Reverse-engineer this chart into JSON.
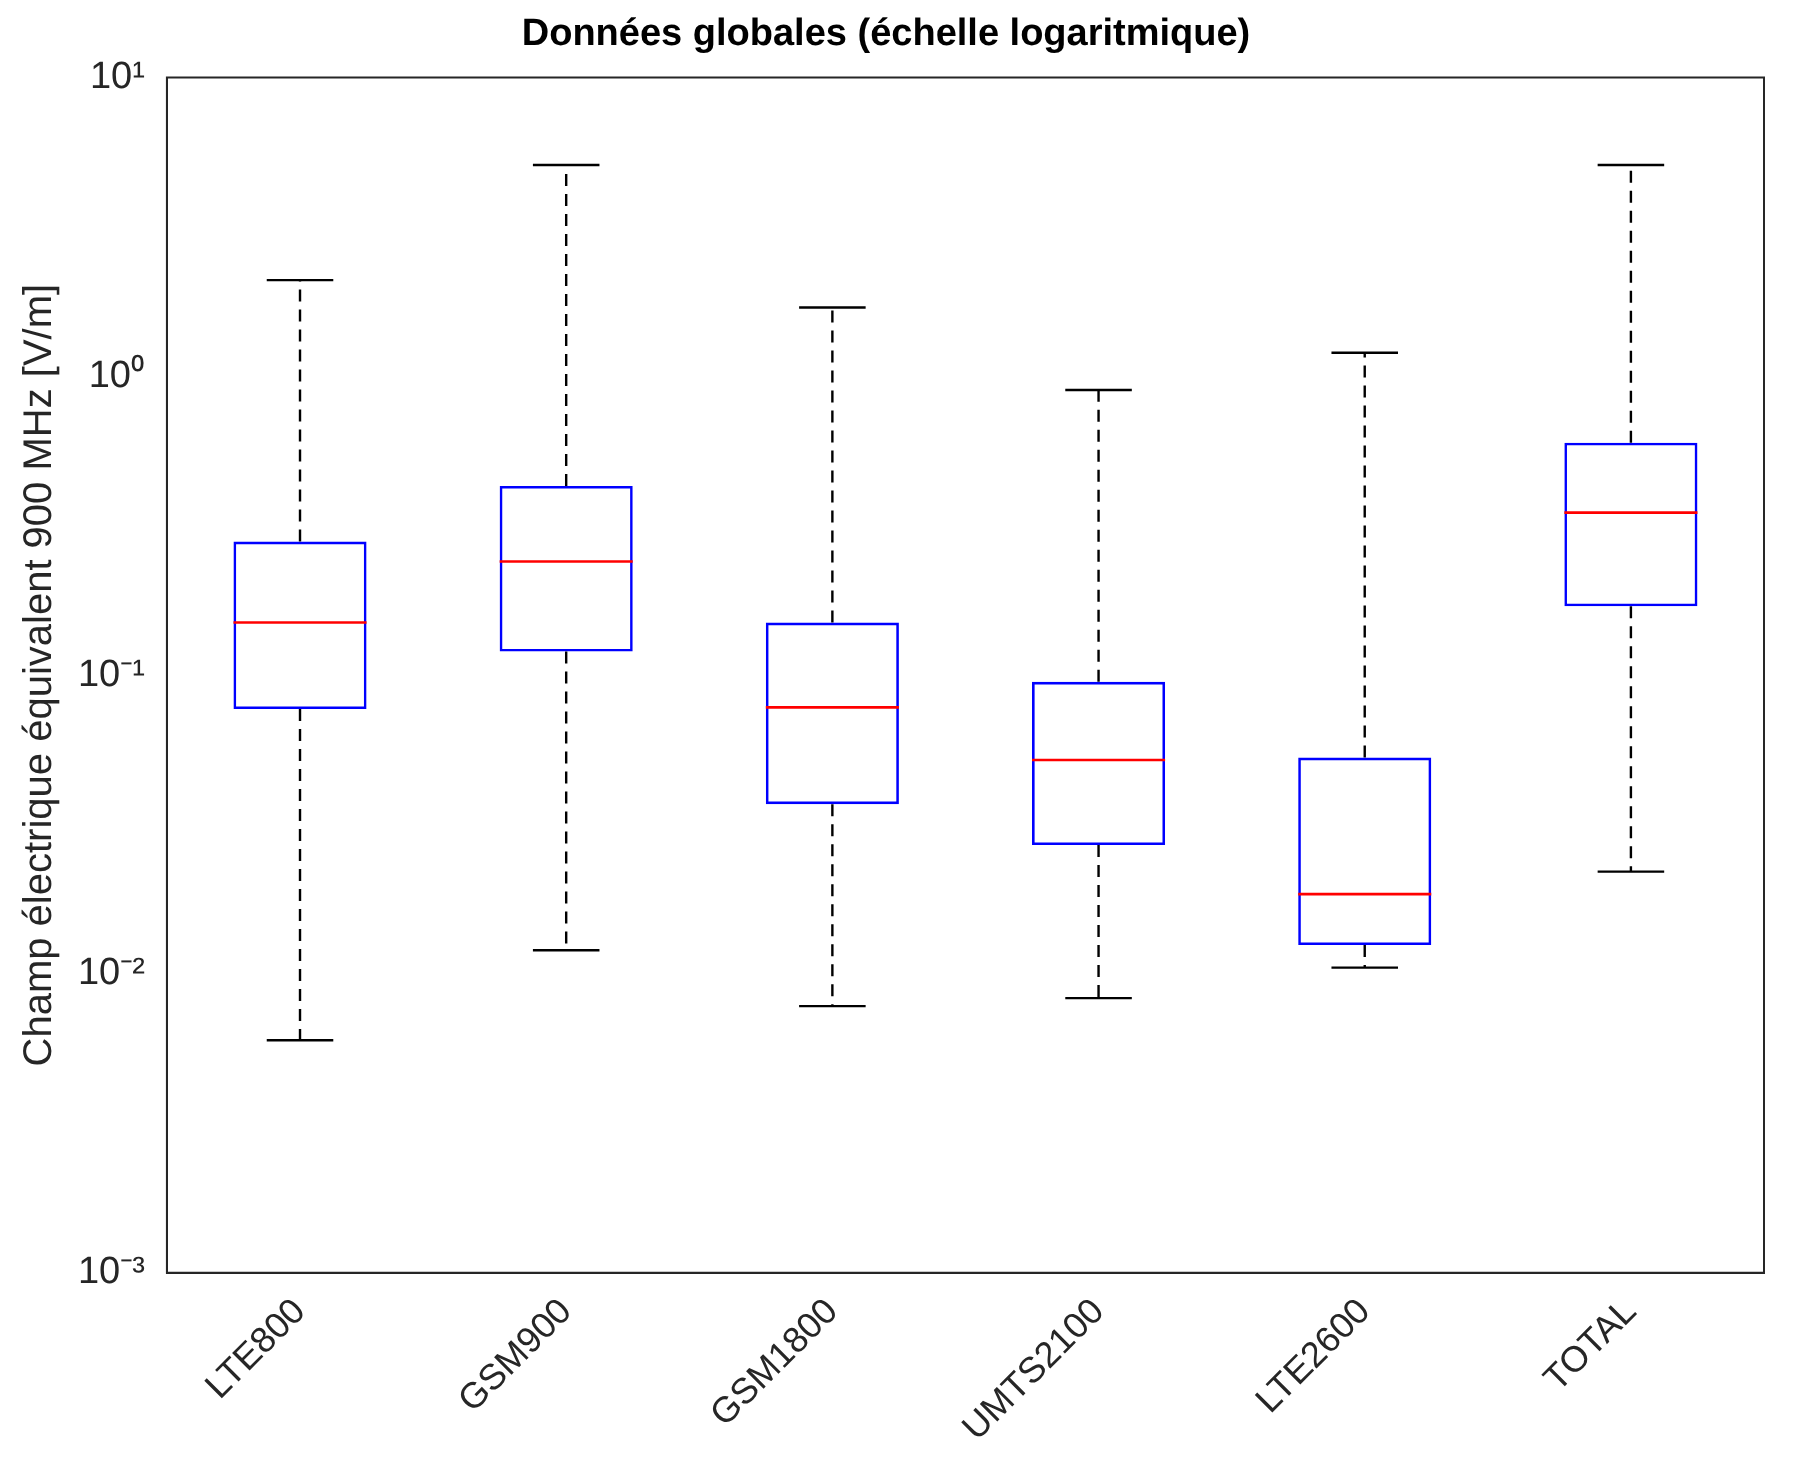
{
  "chart_data": {
    "type": "box",
    "title": "Données globales (échelle logaritmique)",
    "ylabel": "Champ électrique équivalent 900 MHz [V/m]",
    "categories": [
      "LTE800",
      "GSM900",
      "GSM1800",
      "UMTS2100",
      "LTE2600",
      "TOTAL"
    ],
    "color": "#0000ff",
    "boxes": [
      {
        "low": 0.006,
        "q1": 0.077,
        "median": 0.15,
        "q3": 0.28,
        "high": 2.1
      },
      {
        "low": 0.012,
        "q1": 0.12,
        "median": 0.24,
        "q3": 0.43,
        "high": 5.1
      },
      {
        "low": 0.0078,
        "q1": 0.037,
        "median": 0.078,
        "q3": 0.15,
        "high": 1.7
      },
      {
        "low": 0.0083,
        "q1": 0.027,
        "median": 0.052,
        "q3": 0.095,
        "high": 0.9
      },
      {
        "low": 0.0105,
        "q1": 0.0125,
        "median": 0.0185,
        "q3": 0.053,
        "high": 1.2
      },
      {
        "low": 0.022,
        "q1": 0.17,
        "median": 0.35,
        "q3": 0.6,
        "high": 5.1
      }
    ],
    "log": "y",
    "ylim": [
      0.001,
      10
    ],
    "yticks": [
      {
        "value": 0.001,
        "label": "10⁻³"
      },
      {
        "value": 0.01,
        "label": "10⁻²"
      },
      {
        "value": 0.1,
        "label": "10⁻¹"
      },
      {
        "value": 1,
        "label": "10⁰"
      },
      {
        "value": 10,
        "label": "10¹"
      }
    ],
    "grid": false,
    "legend": false
  }
}
